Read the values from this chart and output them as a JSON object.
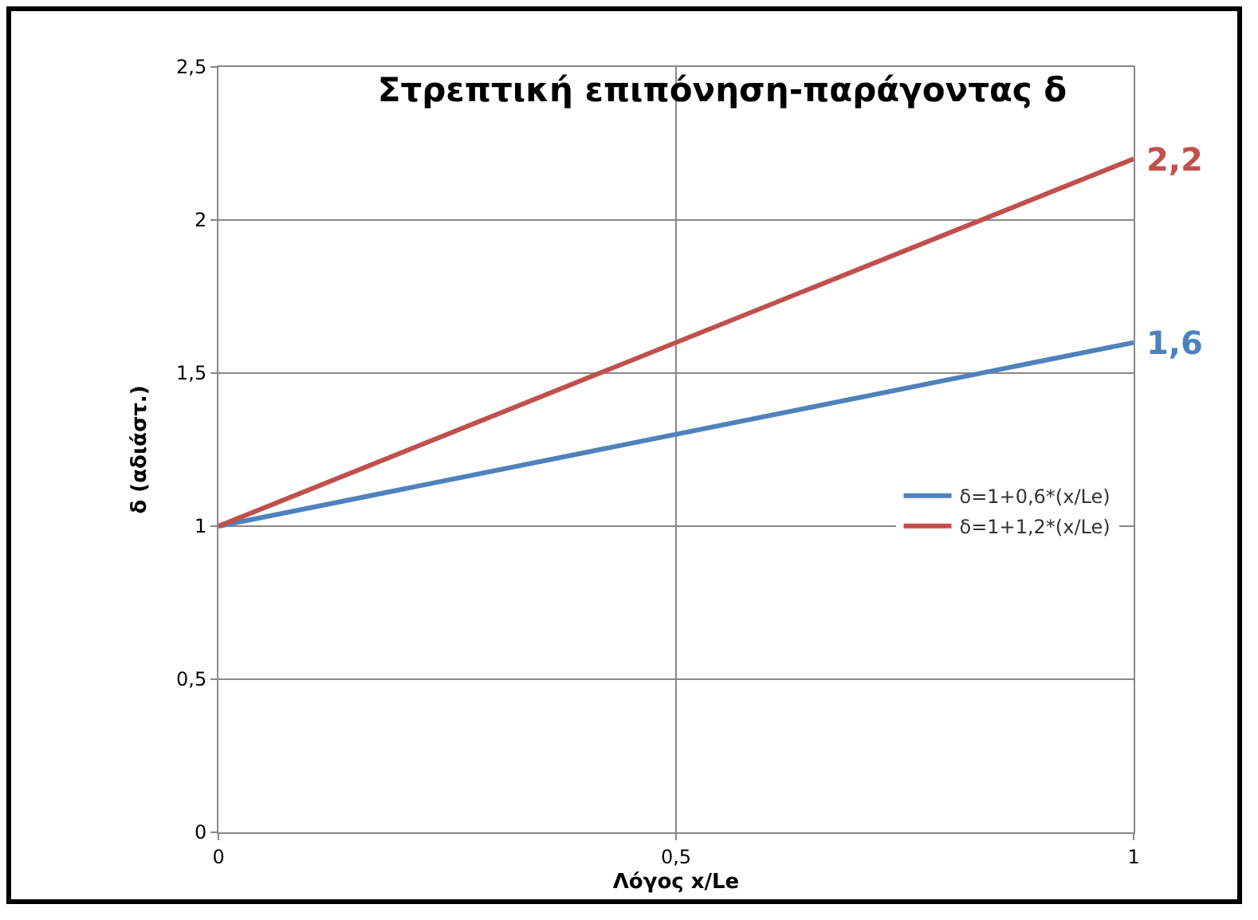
{
  "chart_data": {
    "type": "line",
    "title": "Στρεπτική επιπόνηση-παράγοντας δ",
    "xlabel": "Λόγος x/Le",
    "ylabel": "δ (αδιάστ.)",
    "x": [
      0,
      1
    ],
    "series": [
      {
        "name": "δ=1+0,6*(x/Le)",
        "color": "#4f81bd",
        "values": [
          1,
          1.6
        ]
      },
      {
        "name": "δ=1+1,2*(x/Le)",
        "color": "#c0504d",
        "values": [
          1,
          2.2
        ]
      }
    ],
    "xlim": [
      0,
      1
    ],
    "xticks": [
      0,
      {
        "value": 0.5,
        "label": "0,5"
      },
      1
    ],
    "ylim": [
      0,
      2.5
    ],
    "yticks": [
      0,
      {
        "value": 0.5,
        "label": "0,5"
      },
      1,
      {
        "value": 1.5,
        "label": "1,5"
      },
      2,
      {
        "value": 2.5,
        "label": "2,5"
      }
    ],
    "annotations": [
      {
        "text": "1,6",
        "x": 1,
        "y": 1.6
      },
      {
        "text": "2,2",
        "x": 1,
        "y": 2.2
      }
    ],
    "grid": true,
    "legend": "right",
    "marker": "none",
    "line_style": "solid"
  }
}
